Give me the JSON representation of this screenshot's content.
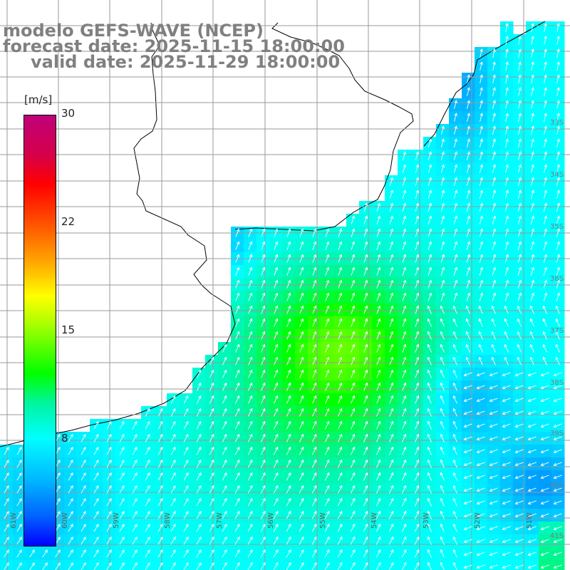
{
  "title": {
    "model": "modelo GEFS-WAVE (NCEP)",
    "forecast": "forecast date: 2025-11-15 18:00:00",
    "valid": "valid date: 2025-11-29 18:00:00"
  },
  "colorbar": {
    "units": "[m/s]",
    "ticks": [
      "30",
      "22",
      "15",
      "8"
    ]
  },
  "lat_labels": [
    "33S",
    "34S",
    "35S",
    "36S",
    "37S",
    "38S",
    "39S",
    "40S",
    "41S"
  ],
  "lon_labels": [
    "61W",
    "60W",
    "59W",
    "58W",
    "57W",
    "56W",
    "55W",
    "54W",
    "53W",
    "52W",
    "51W"
  ],
  "colors": {
    "land": "#ffffff",
    "coastline": "#000000",
    "grid": "#a0a0a0",
    "arrows": "#ffffff",
    "title_text": "#808080"
  }
}
